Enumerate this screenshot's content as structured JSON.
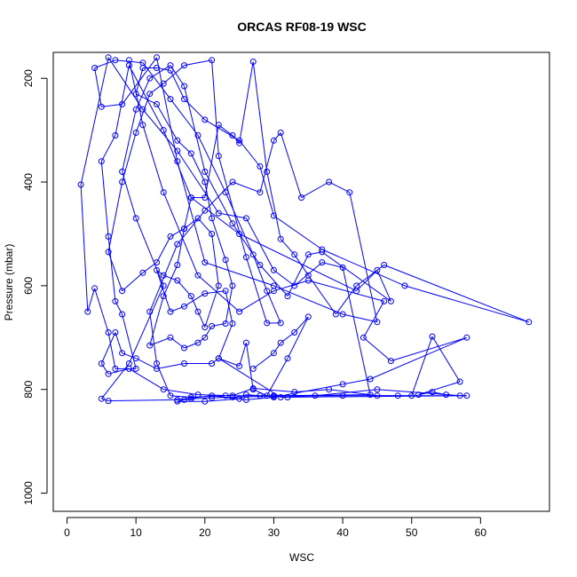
{
  "chart_data": {
    "type": "line",
    "title": "ORCAS RF08-19 WSC",
    "xlabel": "WSC",
    "ylabel": "Pressure (mbar)",
    "xlim": [
      -2,
      70
    ],
    "ylim": [
      1035,
      150
    ],
    "y_reversed": true,
    "grid": false,
    "marker": "open-circle",
    "line_color": "#0000ff",
    "x_ticks": [
      0,
      10,
      20,
      30,
      40,
      50,
      60
    ],
    "y_ticks": [
      200,
      400,
      600,
      800,
      1000
    ],
    "series": [
      {
        "points": [
          [
            9,
            165
          ],
          [
            11,
            290
          ],
          [
            14,
            420
          ],
          [
            19,
            580
          ],
          [
            25,
            650
          ],
          [
            30,
            610
          ],
          [
            35,
            590
          ],
          [
            46,
            630
          ],
          [
            43,
            700
          ],
          [
            47,
            745
          ],
          [
            58,
            700
          ],
          [
            44,
            780
          ],
          [
            40,
            790
          ],
          [
            30,
            815
          ],
          [
            26,
            820
          ],
          [
            21,
            812
          ],
          [
            16,
            820
          ],
          [
            6,
            822
          ],
          [
            5,
            818
          ],
          [
            9,
            750
          ],
          [
            14,
            600
          ],
          [
            10,
            470
          ],
          [
            8,
            380
          ],
          [
            10,
            260
          ],
          [
            12,
            200
          ],
          [
            15,
            175
          ],
          [
            17,
            215
          ],
          [
            20,
            380
          ],
          [
            24,
            480
          ],
          [
            28,
            560
          ],
          [
            32,
            620
          ],
          [
            35,
            540
          ],
          [
            37,
            535
          ],
          [
            47,
            630
          ],
          [
            45,
            570
          ],
          [
            42,
            610
          ],
          [
            25,
            500
          ],
          [
            18,
            430
          ],
          [
            14,
            300
          ],
          [
            9,
            175
          ],
          [
            7,
            310
          ],
          [
            5,
            360
          ],
          [
            6,
            505
          ],
          [
            7,
            630
          ],
          [
            8,
            655
          ],
          [
            10,
            760
          ],
          [
            7,
            760
          ],
          [
            6,
            690
          ],
          [
            4,
            605
          ],
          [
            3,
            650
          ],
          [
            2,
            405
          ],
          [
            6,
            160
          ],
          [
            11,
            260
          ],
          [
            16,
            340
          ],
          [
            22,
            460
          ],
          [
            26,
            470
          ],
          [
            30,
            570
          ],
          [
            33,
            600
          ],
          [
            37,
            555
          ],
          [
            40,
            565
          ],
          [
            44,
            810
          ],
          [
            30,
            812
          ],
          [
            23,
            812
          ],
          [
            18,
            815
          ],
          [
            15,
            812
          ],
          [
            13,
            750
          ],
          [
            12,
            650
          ],
          [
            16,
            520
          ],
          [
            20,
            455
          ],
          [
            24,
            400
          ],
          [
            28,
            420
          ],
          [
            30,
            320
          ],
          [
            31,
            305
          ],
          [
            34,
            430
          ],
          [
            38,
            400
          ],
          [
            41,
            420
          ],
          [
            45,
            670
          ],
          [
            40,
            655
          ],
          [
            30,
            600
          ],
          [
            20,
            555
          ],
          [
            16,
            360
          ],
          [
            13,
            160
          ],
          [
            8,
            250
          ],
          [
            5,
            255
          ],
          [
            4,
            180
          ],
          [
            7,
            165
          ],
          [
            11,
            170
          ],
          [
            15,
            240
          ],
          [
            19,
            310
          ],
          [
            23,
            420
          ],
          [
            27,
            540
          ],
          [
            29,
            610
          ],
          [
            31,
            672
          ],
          [
            29,
            672
          ],
          [
            26,
            545
          ],
          [
            22,
            350
          ],
          [
            21,
            165
          ],
          [
            17,
            175
          ],
          [
            14,
            210
          ],
          [
            12,
            230
          ],
          [
            10,
            305
          ],
          [
            8,
            400
          ],
          [
            6,
            535
          ],
          [
            8,
            610
          ],
          [
            11,
            575
          ],
          [
            13,
            555
          ],
          [
            15,
            505
          ],
          [
            17,
            490
          ],
          [
            18,
            430
          ],
          [
            20,
            430
          ],
          [
            22,
            290
          ],
          [
            24,
            310
          ],
          [
            25,
            325
          ],
          [
            27,
            168
          ],
          [
            29,
            380
          ],
          [
            31,
            510
          ],
          [
            33,
            540
          ],
          [
            35,
            580
          ],
          [
            39,
            655
          ],
          [
            42,
            600
          ],
          [
            46,
            560
          ],
          [
            67,
            670
          ],
          [
            49,
            600
          ],
          [
            37,
            530
          ],
          [
            30,
            465
          ],
          [
            28,
            370
          ],
          [
            25,
            320
          ],
          [
            20,
            280
          ],
          [
            17,
            240
          ],
          [
            15,
            185
          ],
          [
            13,
            180
          ],
          [
            11,
            180
          ],
          [
            10,
            230
          ],
          [
            13,
            250
          ],
          [
            16,
            320
          ],
          [
            18,
            345
          ],
          [
            20,
            400
          ],
          [
            21,
            470
          ],
          [
            23,
            550
          ],
          [
            24,
            600
          ],
          [
            23,
            673
          ],
          [
            21,
            678
          ],
          [
            20,
            700
          ],
          [
            19,
            710
          ],
          [
            17,
            720
          ],
          [
            15,
            700
          ],
          [
            12,
            715
          ],
          [
            14,
            620
          ],
          [
            16,
            560
          ],
          [
            17,
            490
          ],
          [
            19,
            470
          ],
          [
            21,
            500
          ],
          [
            22,
            600
          ],
          [
            20,
            680
          ],
          [
            19,
            650
          ],
          [
            18,
            620
          ],
          [
            16,
            590
          ],
          [
            14,
            580
          ],
          [
            13,
            570
          ],
          [
            15,
            650
          ],
          [
            17,
            640
          ],
          [
            20,
            615
          ],
          [
            23,
            610
          ],
          [
            24,
            673
          ],
          [
            22,
            740
          ],
          [
            21,
            750
          ],
          [
            17,
            750
          ],
          [
            13,
            760
          ],
          [
            10,
            740
          ],
          [
            8,
            730
          ],
          [
            7,
            690
          ],
          [
            5,
            750
          ],
          [
            6,
            770
          ],
          [
            9,
            760
          ],
          [
            14,
            800
          ],
          [
            19,
            810
          ],
          [
            24,
            812
          ],
          [
            27,
            798
          ],
          [
            33,
            805
          ],
          [
            38,
            800
          ],
          [
            45,
            812
          ],
          [
            50,
            812
          ],
          [
            53,
            698
          ],
          [
            57,
            785
          ],
          [
            51,
            810
          ],
          [
            53,
            805
          ],
          [
            55,
            810
          ],
          [
            57,
            812
          ],
          [
            45,
            800
          ],
          [
            36,
            812
          ],
          [
            32,
            815
          ],
          [
            28,
            812
          ],
          [
            26,
            810
          ],
          [
            25,
            818
          ],
          [
            20,
            823
          ],
          [
            16,
            823
          ],
          [
            17,
            820
          ],
          [
            18,
            818
          ],
          [
            21,
            816
          ],
          [
            24,
            815
          ],
          [
            30,
            813
          ],
          [
            40,
            812
          ],
          [
            48,
            812
          ],
          [
            58,
            812
          ],
          [
            31,
            815
          ],
          [
            22,
            740
          ],
          [
            25,
            755
          ],
          [
            26,
            710
          ],
          [
            27,
            800
          ],
          [
            29,
            812
          ],
          [
            32,
            740
          ],
          [
            35,
            660
          ],
          [
            33,
            690
          ],
          [
            31,
            710
          ],
          [
            30,
            730
          ],
          [
            27,
            760
          ]
        ]
      }
    ]
  }
}
